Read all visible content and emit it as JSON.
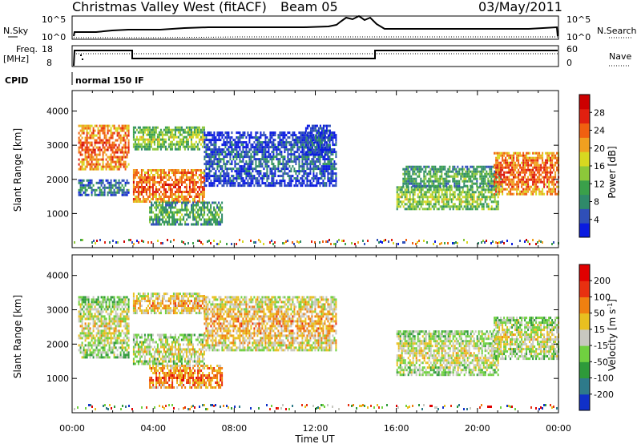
{
  "header": {
    "title": "Christmas Valley West (fitACF)",
    "beam": "Beam 05",
    "date": "03/May/2011"
  },
  "top_panels": {
    "nsky_label": "N.Sky",
    "nsky_ticks": [
      "10^5",
      "10^0"
    ],
    "nsearch_label": "N.Search",
    "nsearch_ticks": [
      "10^5",
      "10^0"
    ],
    "freq_label_1": "Freq.",
    "freq_label_2": "[MHz]",
    "freq_ticks": [
      "18",
      "8"
    ],
    "nave_label": "Nave",
    "nave_ticks": [
      "60",
      "0"
    ],
    "cpid_label": "CPID",
    "cpid_value": "normal 150 IF"
  },
  "chart_data": [
    {
      "type": "heatmap",
      "panel": "power",
      "ylabel": "Slant Range [km]",
      "ylim": [
        0,
        4600
      ],
      "yticks": [
        "4000",
        "3000",
        "2000",
        "1000"
      ],
      "xlim": [
        0,
        24
      ],
      "colorbar_label": "Power [dB]",
      "colorbar_ticks": [
        "28",
        "24",
        "20",
        "16",
        "12",
        "8",
        "4"
      ],
      "colors": [
        "#0a1be0",
        "#2f4fb8",
        "#2f8a6a",
        "#3aa04a",
        "#8cc83a",
        "#d8d820",
        "#f0a020",
        "#f06010",
        "#e02010",
        "#cc0000"
      ],
      "bands": [
        {
          "t0": 0.3,
          "t1": 2.8,
          "r0": 2300,
          "r1": 3600,
          "level": 7
        },
        {
          "t0": 0.3,
          "t1": 2.8,
          "r0": 1550,
          "r1": 2000,
          "level": 2
        },
        {
          "t0": 3.0,
          "t1": 6.5,
          "r0": 1350,
          "r1": 2300,
          "level": 7
        },
        {
          "t0": 3.0,
          "t1": 6.5,
          "r0": 2900,
          "r1": 3550,
          "level": 4
        },
        {
          "t0": 3.8,
          "t1": 7.4,
          "r0": 700,
          "r1": 1350,
          "level": 3
        },
        {
          "t0": 6.5,
          "t1": 13.0,
          "r0": 1800,
          "r1": 3400,
          "level": 1
        },
        {
          "t0": 11.5,
          "t1": 12.7,
          "r0": 2700,
          "r1": 3600,
          "level": 1
        },
        {
          "t0": 16.0,
          "t1": 21.0,
          "r0": 1100,
          "r1": 1800,
          "level": 4
        },
        {
          "t0": 16.3,
          "t1": 21.2,
          "r0": 1800,
          "r1": 2400,
          "level": 3
        },
        {
          "t0": 20.8,
          "t1": 24.0,
          "r0": 1600,
          "r1": 2800,
          "level": 7
        }
      ]
    },
    {
      "type": "heatmap",
      "panel": "velocity",
      "ylabel": "Slant Range [km]",
      "ylim": [
        0,
        4600
      ],
      "yticks": [
        "4000",
        "3000",
        "2000",
        "1000"
      ],
      "xlabel": "Time UT",
      "xticks": [
        "00:00",
        "04:00",
        "08:00",
        "12:00",
        "16:00",
        "20:00",
        "00:00"
      ],
      "xlim": [
        0,
        24
      ],
      "colorbar_label": "Velocity [m s",
      "colorbar_unit_sup": "-1",
      "colorbar_ticks": [
        "200",
        "100",
        "50",
        "15",
        "-15",
        "-50",
        "-100",
        "-200"
      ],
      "colors": [
        "#1030c8",
        "#2e7a8a",
        "#2e9a3a",
        "#70d040",
        "#c8c8c0",
        "#e8c020",
        "#f08010",
        "#e83010",
        "#e00000"
      ],
      "bands": [
        {
          "t0": 0.3,
          "t1": 2.8,
          "r0": 1600,
          "r1": 3400,
          "level": 4
        },
        {
          "t0": 3.0,
          "t1": 6.5,
          "r0": 1400,
          "r1": 2300,
          "level": 4
        },
        {
          "t0": 3.0,
          "t1": 6.5,
          "r0": 2900,
          "r1": 3500,
          "level": 5
        },
        {
          "t0": 3.8,
          "t1": 7.4,
          "r0": 700,
          "r1": 1400,
          "level": 6
        },
        {
          "t0": 6.5,
          "t1": 13.0,
          "r0": 1800,
          "r1": 3400,
          "level": 5
        },
        {
          "t0": 16.0,
          "t1": 21.0,
          "r0": 1100,
          "r1": 2400,
          "level": 4
        },
        {
          "t0": 20.8,
          "t1": 24.0,
          "r0": 1600,
          "r1": 2800,
          "level": 4
        }
      ]
    }
  ]
}
